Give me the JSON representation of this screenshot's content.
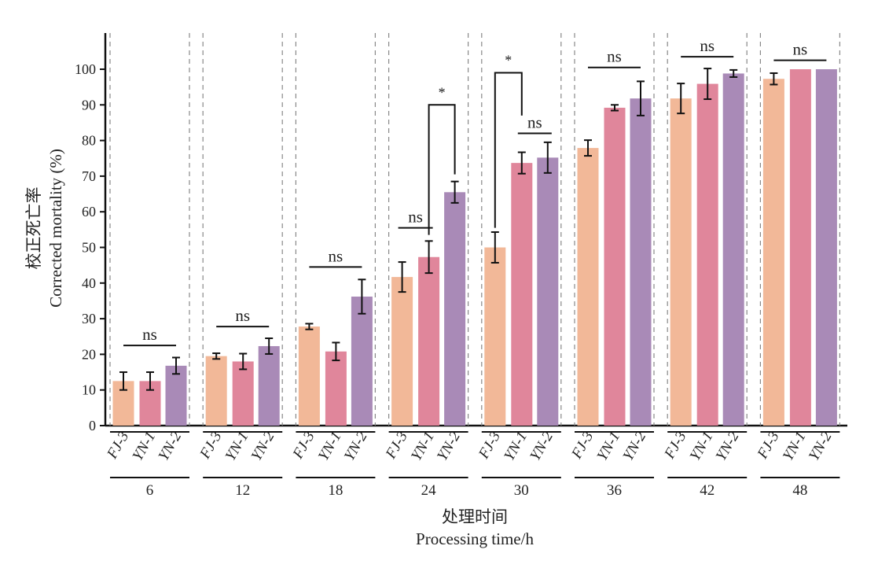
{
  "chart_data": {
    "type": "bar",
    "ylabel_cn": "校正死亡率",
    "ylabel": "Corrected mortality (%)",
    "xlabel_cn": "处理时间",
    "xlabel": "Processing time/h",
    "ylim": [
      0,
      110
    ],
    "yticks": [
      0,
      10,
      20,
      30,
      40,
      50,
      60,
      70,
      80,
      90,
      100
    ],
    "categories": [
      "6",
      "12",
      "18",
      "24",
      "30",
      "36",
      "42",
      "48"
    ],
    "series_labels": [
      "FJ-3",
      "YN-1",
      "YN-2"
    ],
    "colors": [
      "#f2b898",
      "#e0869b",
      "#a98ab7"
    ],
    "series": [
      {
        "name": "FJ-3",
        "values": [
          12.5,
          19.5,
          27.8,
          41.7,
          50.0,
          77.9,
          91.8,
          97.3
        ],
        "errors": [
          2.5,
          0.8,
          0.8,
          4.2,
          4.3,
          2.2,
          4.2,
          1.6
        ]
      },
      {
        "name": "YN-1",
        "values": [
          12.5,
          18.0,
          20.8,
          47.3,
          73.7,
          89.2,
          95.9,
          100
        ],
        "errors": [
          2.5,
          2.2,
          2.5,
          4.5,
          3.0,
          0.8,
          4.3,
          0
        ]
      },
      {
        "name": "YN-2",
        "values": [
          16.8,
          22.3,
          36.2,
          65.5,
          75.2,
          91.8,
          98.8,
          100
        ],
        "errors": [
          2.3,
          2.2,
          4.8,
          3.0,
          4.3,
          4.8,
          1.0,
          0
        ]
      }
    ],
    "annotations": [
      {
        "group": 0,
        "from": 0,
        "to": 2,
        "y": 22.5,
        "label": "ns",
        "type": "line"
      },
      {
        "group": 1,
        "from": 0,
        "to": 2,
        "y": 27.8,
        "label": "ns",
        "type": "line"
      },
      {
        "group": 2,
        "from": 0,
        "to": 2,
        "y": 44.5,
        "label": "ns",
        "type": "line"
      },
      {
        "group": 3,
        "from": 0,
        "to": 1,
        "y": 55.5,
        "label": "ns",
        "type": "line"
      },
      {
        "group": 3,
        "from": 1,
        "to": 2,
        "y": 90.0,
        "label": "*",
        "type": "bracket",
        "drop_from": 53.5,
        "drop_to": 70.5
      },
      {
        "group": 4,
        "from": 0,
        "to": 1,
        "y": 99.0,
        "label": "*",
        "type": "bracket",
        "drop_from": 55.5,
        "drop_to": 87.0
      },
      {
        "group": 4,
        "from": 1,
        "to": 2,
        "y": 82.0,
        "label": "ns",
        "type": "line"
      },
      {
        "group": 5,
        "from": 0,
        "to": 2,
        "y": 100.5,
        "label": "ns",
        "type": "line"
      },
      {
        "group": 6,
        "from": 0,
        "to": 2,
        "y": 103.5,
        "label": "ns",
        "type": "line"
      },
      {
        "group": 7,
        "from": 0,
        "to": 2,
        "y": 102.5,
        "label": "ns",
        "type": "line"
      }
    ]
  }
}
